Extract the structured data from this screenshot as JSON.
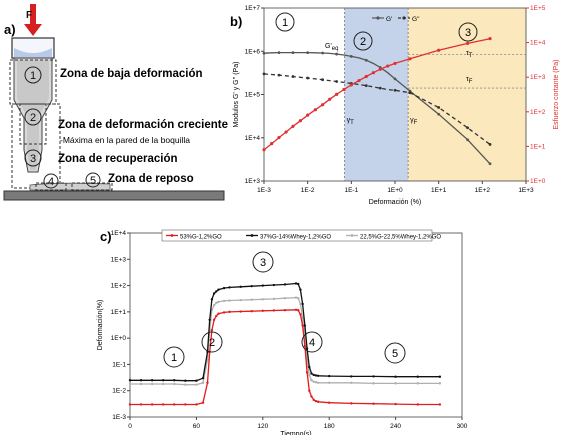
{
  "panel_a": {
    "letter": "a)",
    "force_label": "F",
    "zones": [
      {
        "num": "1",
        "label": "Zona de baja deformación"
      },
      {
        "num": "2",
        "label": "Zona de deformación creciente",
        "sub": "-Máxima en la pared de la boquilla"
      },
      {
        "num": "3",
        "label": "Zona de recuperación"
      },
      {
        "num": "4",
        "label": ""
      },
      {
        "num": "5",
        "label": "Zona de reposo"
      }
    ]
  },
  "chart_data": [
    {
      "panel": "b)",
      "type": "line",
      "title": "",
      "xlabel": "Deformación (%)",
      "ylabel": "Modulos G' y G'' (Pa)",
      "y2label": "Esfuerzo cortante (Pa)",
      "xscale": "log",
      "yscale": "log",
      "y2scale": "log",
      "xlim": [
        0.001,
        1000
      ],
      "ylim": [
        1000,
        10000000
      ],
      "y2lim": [
        1,
        100000
      ],
      "x_ticks": [
        "1E-3",
        "1E-2",
        "1E-1",
        "1E+0",
        "1E+1",
        "1E+2",
        "1E+3"
      ],
      "y_ticks": [
        "1E+3",
        "1E+4",
        "1E+5",
        "1E+6",
        "1E+7"
      ],
      "y2_ticks": [
        "1E+0",
        "1E+1",
        "1E+2",
        "1E+3",
        "1E+4",
        "1E+5"
      ],
      "legend": {
        "position": "top-center",
        "entries": [
          "G'",
          "G''"
        ]
      },
      "series": [
        {
          "name": "G'",
          "axis": "left",
          "color": "#555555",
          "dash": "solid",
          "x": [
            0.001,
            0.0015,
            0.0022,
            0.0032,
            0.0046,
            0.0068,
            0.01,
            0.015,
            0.022,
            0.032,
            0.046,
            0.068,
            0.1,
            0.15,
            0.22,
            0.32,
            0.46,
            0.68,
            1.0,
            2.2,
            10,
            46,
            150
          ],
          "y": [
            900000,
            920000,
            930000,
            930000,
            930000,
            930000,
            930000,
            920000,
            910000,
            890000,
            860000,
            820000,
            760000,
            700000,
            620000,
            520000,
            420000,
            320000,
            230000,
            120000,
            35000,
            9000,
            2500
          ]
        },
        {
          "name": "G''",
          "axis": "left",
          "color": "#333333",
          "dash": "dashed",
          "x": [
            0.001,
            0.0015,
            0.0022,
            0.0032,
            0.0046,
            0.0068,
            0.01,
            0.015,
            0.022,
            0.032,
            0.046,
            0.068,
            0.1,
            0.15,
            0.22,
            0.32,
            0.46,
            0.68,
            1.0,
            2.2,
            10,
            46,
            150
          ],
          "y": [
            300000,
            290000,
            280000,
            270000,
            260000,
            250000,
            240000,
            230000,
            220000,
            210000,
            200000,
            190000,
            180000,
            170000,
            160000,
            150000,
            140000,
            130000,
            125000,
            110000,
            50000,
            17000,
            7000
          ]
        },
        {
          "name": "",
          "axis": "right",
          "color": "#e03030",
          "dash": "solid",
          "x": [
            0.001,
            0.0015,
            0.0022,
            0.0032,
            0.0046,
            0.0068,
            0.01,
            0.015,
            0.022,
            0.032,
            0.046,
            0.068,
            0.1,
            0.15,
            0.22,
            0.32,
            0.46,
            0.68,
            1.0,
            2.2,
            10,
            46,
            150
          ],
          "y": [
            8,
            12,
            18,
            26,
            38,
            55,
            80,
            115,
            160,
            230,
            320,
            440,
            600,
            800,
            1050,
            1350,
            1700,
            2100,
            2500,
            3400,
            6000,
            9500,
            13000
          ]
        }
      ],
      "annotations": [
        {
          "text": "1",
          "type": "zone-circle"
        },
        {
          "text": "2",
          "type": "zone-circle"
        },
        {
          "text": "3",
          "type": "zone-circle"
        },
        {
          "text": "G'",
          "sub": "eq",
          "type": "label"
        },
        {
          "text": "γ",
          "sub": "T",
          "type": "label"
        },
        {
          "text": "γ",
          "sub": "F",
          "type": "label"
        },
        {
          "text": "τ",
          "sub": "F",
          "type": "label"
        },
        {
          "text": "τ",
          "sub": "T",
          "type": "label"
        }
      ],
      "bands": [
        {
          "from": 0.07,
          "to": 2.0,
          "color": "#c5d3ea"
        },
        {
          "from": 2.0,
          "to": 1000,
          "color": "#fbe8bd"
        }
      ],
      "grid": false
    },
    {
      "panel": "c)",
      "type": "line",
      "title": "",
      "xlabel": "Tiempo(s)",
      "ylabel": "Deformación(%)",
      "yscale": "log",
      "xlim": [
        0,
        300
      ],
      "ylim": [
        0.001,
        10000
      ],
      "x_ticks": [
        "0",
        "60",
        "120",
        "180",
        "240",
        "300"
      ],
      "y_ticks": [
        "1E-3",
        "1E-2",
        "1E-1",
        "1E+0",
        "1E+1",
        "1E+2",
        "1E+3",
        "1E+4"
      ],
      "legend": {
        "position": "top",
        "entries": [
          "53%G-1,2%GO",
          "37%G-14%Whey-1,2%GO",
          "22,5%G-22,5%Whey-1,2%GO"
        ]
      },
      "series": [
        {
          "name": "53%G-1,2%GO",
          "color": "#e21b1b",
          "x": [
            0,
            10,
            20,
            30,
            40,
            50,
            60,
            66,
            70,
            72,
            74,
            76,
            78,
            80,
            85,
            90,
            100,
            110,
            120,
            130,
            140,
            150,
            152,
            154,
            156,
            158,
            160,
            162,
            164,
            166,
            168,
            170,
            180,
            200,
            220,
            240,
            260,
            280
          ],
          "y": [
            0.003,
            0.003,
            0.003,
            0.003,
            0.003,
            0.003,
            0.003,
            0.0035,
            0.02,
            0.3,
            2,
            5,
            7,
            8.5,
            9.5,
            10,
            10.3,
            10.6,
            11,
            11.3,
            11.6,
            12,
            11.5,
            8,
            3,
            0.5,
            0.05,
            0.01,
            0.006,
            0.0045,
            0.004,
            0.0038,
            0.0035,
            0.0033,
            0.0032,
            0.0031,
            0.003,
            0.003
          ]
        },
        {
          "name": "37%G-14%Whey-1,2%GO",
          "color": "#111111",
          "x": [
            0,
            10,
            20,
            30,
            40,
            50,
            60,
            66,
            70,
            72,
            74,
            76,
            78,
            80,
            85,
            90,
            100,
            110,
            120,
            130,
            140,
            150,
            152,
            154,
            156,
            158,
            160,
            162,
            164,
            166,
            168,
            170,
            180,
            200,
            220,
            240,
            260,
            280
          ],
          "y": [
            0.025,
            0.025,
            0.025,
            0.025,
            0.025,
            0.024,
            0.024,
            0.03,
            0.3,
            5,
            30,
            50,
            60,
            70,
            80,
            85,
            90,
            95,
            100,
            105,
            110,
            120,
            115,
            70,
            20,
            3,
            0.4,
            0.08,
            0.045,
            0.04,
            0.038,
            0.037,
            0.036,
            0.035,
            0.035,
            0.034,
            0.034,
            0.034
          ]
        },
        {
          "name": "22,5%G-22,5%Whey-1,2%GO",
          "color": "#b0b0b0",
          "x": [
            0,
            10,
            20,
            30,
            40,
            50,
            60,
            66,
            70,
            72,
            74,
            76,
            78,
            80,
            85,
            90,
            100,
            110,
            120,
            130,
            140,
            150,
            152,
            154,
            156,
            158,
            160,
            162,
            164,
            166,
            168,
            170,
            180,
            200,
            220,
            240,
            260,
            280
          ],
          "y": [
            0.018,
            0.018,
            0.018,
            0.018,
            0.018,
            0.017,
            0.017,
            0.02,
            0.15,
            2,
            12,
            18,
            22,
            24,
            26,
            27,
            28,
            29,
            30,
            31,
            33,
            35,
            33,
            20,
            6,
            1,
            0.15,
            0.04,
            0.025,
            0.022,
            0.021,
            0.02,
            0.02,
            0.02,
            0.019,
            0.019,
            0.019,
            0.019
          ]
        }
      ],
      "annotations": [
        {
          "text": "1",
          "type": "zone-circle"
        },
        {
          "text": "2",
          "type": "zone-circle"
        },
        {
          "text": "3",
          "type": "zone-circle"
        },
        {
          "text": "4",
          "type": "zone-circle"
        },
        {
          "text": "5",
          "type": "zone-circle"
        }
      ],
      "grid": false
    }
  ]
}
